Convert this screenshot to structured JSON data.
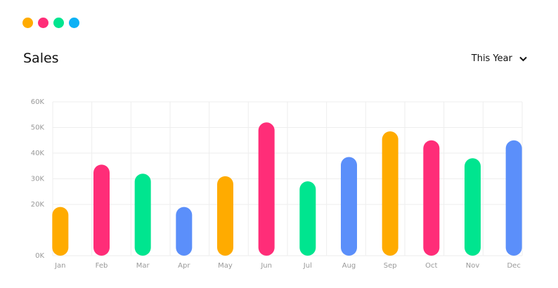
{
  "header": {
    "title": "Sales",
    "period": "This Year"
  },
  "chart_data": {
    "type": "bar",
    "categories": [
      "Jan",
      "Feb",
      "Mar",
      "Apr",
      "May",
      "Jun",
      "Jul",
      "Aug",
      "Sep",
      "Oct",
      "Nov",
      "Dec"
    ],
    "values": [
      19000,
      35500,
      32000,
      19000,
      31000,
      52000,
      29000,
      38500,
      48500,
      45000,
      38000,
      45000
    ],
    "colors": [
      "#ffab00",
      "#ff2d78",
      "#00e58f",
      "#5b8ffa",
      "#ffab00",
      "#ff2d78",
      "#00e58f",
      "#5b8ffa",
      "#ffab00",
      "#ff2d78",
      "#00e58f",
      "#5b8ffa"
    ],
    "ylim": [
      0,
      60000
    ],
    "yticks": [
      {
        "value": 0,
        "label": "0K"
      },
      {
        "value": 20000,
        "label": "20K"
      },
      {
        "value": 30000,
        "label": "30K"
      },
      {
        "value": 40000,
        "label": "40K"
      },
      {
        "value": 50000,
        "label": "50K"
      },
      {
        "value": 60000,
        "label": "60K"
      }
    ],
    "grid": true
  }
}
